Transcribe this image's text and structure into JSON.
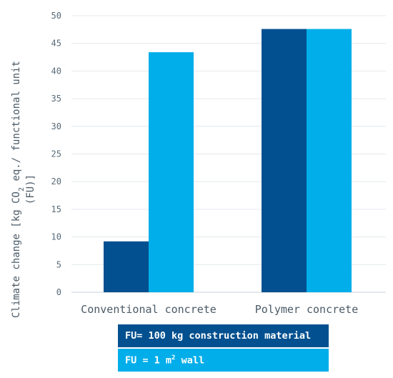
{
  "chart_data": {
    "type": "bar",
    "categories": [
      "Conventional concrete",
      "Polymer concrete"
    ],
    "series": [
      {
        "name": "FU= 100 kg construction material",
        "values": [
          9.2,
          47.6
        ],
        "color": "#02508f"
      },
      {
        "name": "FU = 1 m² wall",
        "values": [
          43.4,
          47.6
        ],
        "color": "#01aeea"
      }
    ],
    "ylabel_line1_pre": "Climate change [kg CO",
    "ylabel_sub": "2",
    "ylabel_line1_post": " eq./ functional unit",
    "ylabel_line2": "(FU)]",
    "ylim": [
      0,
      50
    ],
    "yticks": [
      0,
      5,
      10,
      15,
      20,
      25,
      30,
      35,
      40,
      45,
      50
    ],
    "grid": true,
    "legend_position": "bottom"
  },
  "legend": {
    "item1": "FU= 100 kg construction material",
    "item2_pre": "FU = 1 m",
    "item2_sup": "2",
    "item2_post": " wall"
  }
}
